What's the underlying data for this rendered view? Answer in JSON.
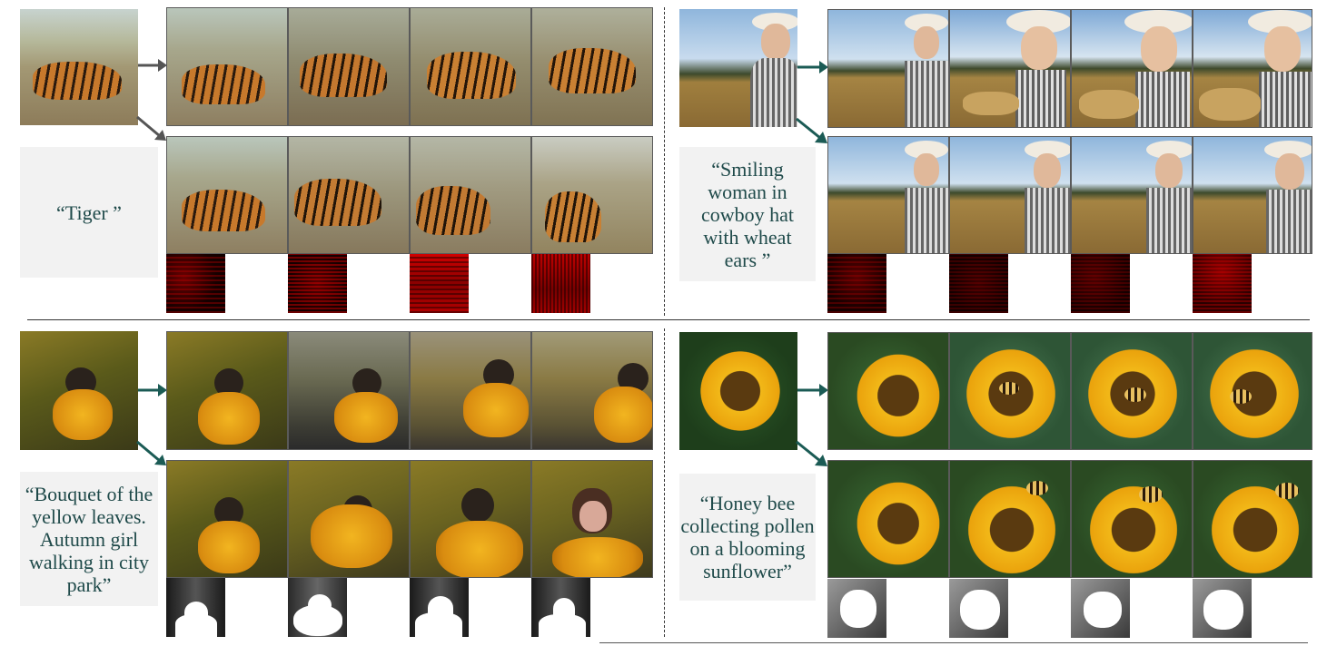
{
  "panels": {
    "tiger": {
      "caption": "“Tiger ”"
    },
    "woman": {
      "caption_lines": [
        "“Smiling",
        "woman in",
        "cowboy hat",
        "with wheat",
        "ears ”"
      ]
    },
    "leaves": {
      "caption_lines": [
        "“Bouquet of the",
        "yellow leaves.",
        "Autumn girl",
        "walking in city",
        "park”"
      ]
    },
    "bee": {
      "caption_lines": [
        "“Honey bee",
        "collecting pollen",
        "on a blooming",
        "sunflower”"
      ]
    }
  },
  "colors": {
    "caption_text": "#1f4a4a",
    "caption_bg": "#f2f2f2",
    "arrow_gray": "#555555",
    "arrow_teal": "#1b5b55",
    "heatmap_red": "#c00000",
    "mask_white": "#ffffff"
  }
}
